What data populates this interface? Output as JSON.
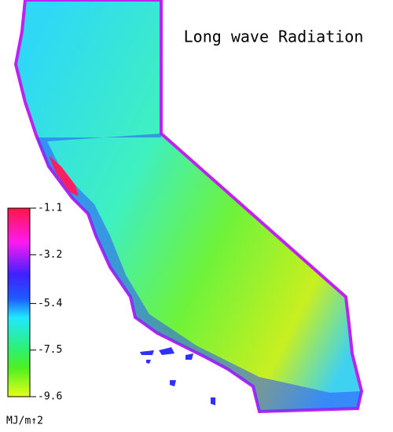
{
  "title": "Long wave Radiation",
  "colorbar": {
    "ticks": [
      -1.1,
      -3.2,
      -5.4,
      -7.5,
      -9.6
    ],
    "unit": "MJ/m↑2"
  }
}
